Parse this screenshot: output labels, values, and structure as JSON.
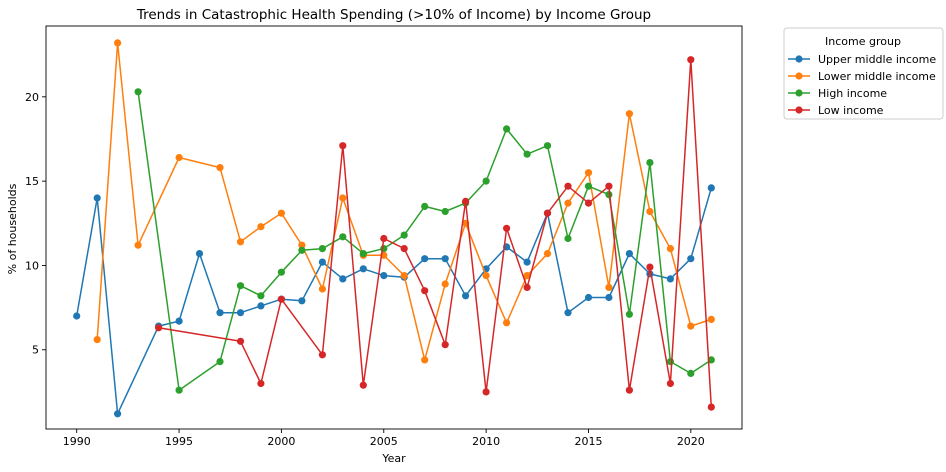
{
  "chart_data": {
    "type": "line",
    "title": "Trends in Catastrophic Health Spending (>10% of Income) by Income Group",
    "xlabel": "Year",
    "ylabel": "% of households",
    "xlim": [
      1988.5,
      2022.5
    ],
    "ylim": [
      0.3,
      24.2
    ],
    "xticks": [
      1990,
      1995,
      2000,
      2005,
      2010,
      2015,
      2020
    ],
    "yticks": [
      5,
      10,
      15,
      20
    ],
    "grid": false,
    "legend": {
      "title": "Income group",
      "placement": "outside-top-right"
    },
    "series": [
      {
        "name": "Upper middle income",
        "color": "#1f77b4",
        "points": [
          [
            1990,
            7.0
          ],
          [
            1991,
            14.0
          ],
          [
            1992,
            1.2
          ],
          [
            1994,
            6.4
          ],
          [
            1995,
            6.7
          ],
          [
            1996,
            10.7
          ],
          [
            1997,
            7.2
          ],
          [
            1998,
            7.2
          ],
          [
            1999,
            7.6
          ],
          [
            2000,
            8.0
          ],
          [
            2001,
            7.9
          ],
          [
            2002,
            10.2
          ],
          [
            2003,
            9.2
          ],
          [
            2004,
            9.8
          ],
          [
            2005,
            9.4
          ],
          [
            2006,
            9.3
          ],
          [
            2007,
            10.4
          ],
          [
            2008,
            10.4
          ],
          [
            2009,
            8.2
          ],
          [
            2010,
            9.8
          ],
          [
            2011,
            11.1
          ],
          [
            2012,
            10.2
          ],
          [
            2013,
            13.1
          ],
          [
            2014,
            7.2
          ],
          [
            2015,
            8.1
          ],
          [
            2016,
            8.1
          ],
          [
            2017,
            10.7
          ],
          [
            2018,
            9.5
          ],
          [
            2019,
            9.2
          ],
          [
            2020,
            10.4
          ],
          [
            2021,
            14.6
          ]
        ]
      },
      {
        "name": "Lower middle income",
        "color": "#ff7f0e",
        "points": [
          [
            1991,
            5.6
          ],
          [
            1992,
            23.2
          ],
          [
            1993,
            11.2
          ],
          [
            1995,
            16.4
          ],
          [
            1997,
            15.8
          ],
          [
            1998,
            11.4
          ],
          [
            1999,
            12.3
          ],
          [
            2000,
            13.1
          ],
          [
            2001,
            11.2
          ],
          [
            2002,
            8.6
          ],
          [
            2003,
            14.0
          ],
          [
            2004,
            10.6
          ],
          [
            2005,
            10.6
          ],
          [
            2006,
            9.4
          ],
          [
            2007,
            4.4
          ],
          [
            2008,
            8.9
          ],
          [
            2009,
            12.5
          ],
          [
            2010,
            9.4
          ],
          [
            2011,
            6.6
          ],
          [
            2012,
            9.4
          ],
          [
            2013,
            10.7
          ],
          [
            2014,
            13.7
          ],
          [
            2015,
            15.5
          ],
          [
            2016,
            8.7
          ],
          [
            2017,
            19.0
          ],
          [
            2018,
            13.2
          ],
          [
            2019,
            11.0
          ],
          [
            2020,
            6.4
          ],
          [
            2021,
            6.8
          ]
        ]
      },
      {
        "name": "High income",
        "color": "#2ca02c",
        "points": [
          [
            1993,
            20.3
          ],
          [
            1995,
            2.6
          ],
          [
            1997,
            4.3
          ],
          [
            1998,
            8.8
          ],
          [
            1999,
            8.2
          ],
          [
            2000,
            9.6
          ],
          [
            2001,
            10.9
          ],
          [
            2002,
            11.0
          ],
          [
            2003,
            11.7
          ],
          [
            2004,
            10.7
          ],
          [
            2005,
            11.0
          ],
          [
            2006,
            11.8
          ],
          [
            2007,
            13.5
          ],
          [
            2008,
            13.2
          ],
          [
            2009,
            13.7
          ],
          [
            2010,
            15.0
          ],
          [
            2011,
            18.1
          ],
          [
            2012,
            16.6
          ],
          [
            2013,
            17.1
          ],
          [
            2014,
            11.6
          ],
          [
            2015,
            14.7
          ],
          [
            2016,
            14.2
          ],
          [
            2017,
            7.1
          ],
          [
            2018,
            16.1
          ],
          [
            2019,
            4.3
          ],
          [
            2020,
            3.6
          ],
          [
            2021,
            4.4
          ]
        ]
      },
      {
        "name": "Low income",
        "color": "#d62728",
        "points": [
          [
            1994,
            6.3
          ],
          [
            1998,
            5.5
          ],
          [
            1999,
            3.0
          ],
          [
            2000,
            8.0
          ],
          [
            2002,
            4.7
          ],
          [
            2003,
            17.1
          ],
          [
            2004,
            2.9
          ],
          [
            2005,
            11.6
          ],
          [
            2006,
            11.0
          ],
          [
            2007,
            8.5
          ],
          [
            2008,
            5.3
          ],
          [
            2009,
            13.8
          ],
          [
            2010,
            2.5
          ],
          [
            2011,
            12.2
          ],
          [
            2012,
            8.7
          ],
          [
            2013,
            13.1
          ],
          [
            2014,
            14.7
          ],
          [
            2015,
            13.7
          ],
          [
            2016,
            14.7
          ],
          [
            2017,
            2.6
          ],
          [
            2018,
            9.9
          ],
          [
            2019,
            3.0
          ],
          [
            2020,
            22.2
          ],
          [
            2021,
            1.6
          ]
        ]
      }
    ]
  }
}
